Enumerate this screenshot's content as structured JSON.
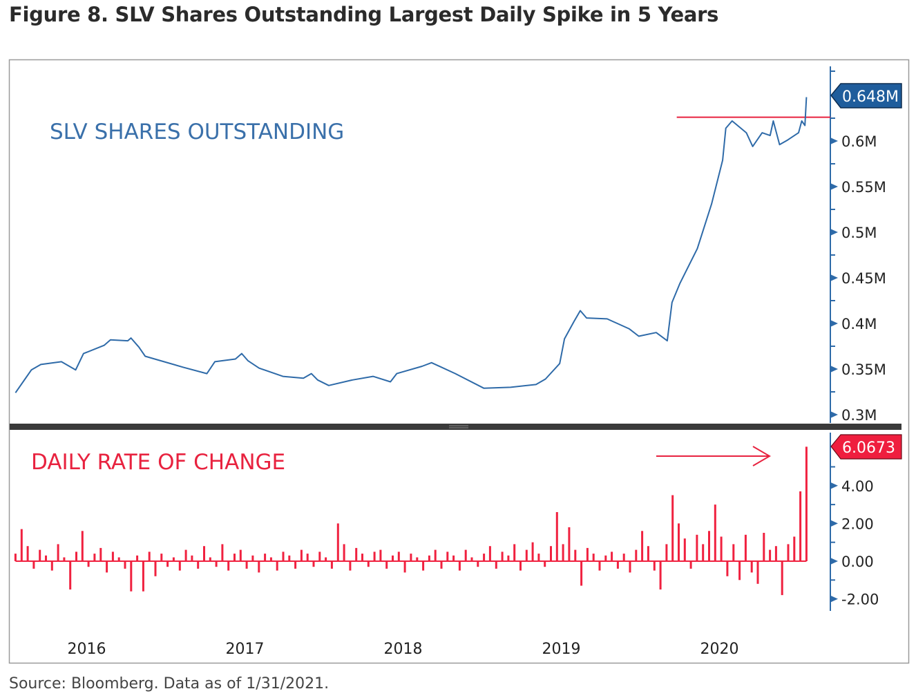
{
  "title": "Figure 8. SLV Shares Outstanding Largest Daily Spike in 5 Years",
  "source": "Source: Bloomberg. Data as of 1/31/2021.",
  "chart_data": [
    {
      "type": "line",
      "panel": "top",
      "annotation": "SLV SHARES OUTSTANDING",
      "ylabel": "",
      "ylim": [
        0.3,
        0.66
      ],
      "yticks": [
        0.3,
        0.35,
        0.4,
        0.45,
        0.5,
        0.55,
        0.6
      ],
      "ytick_labels": [
        "0.3M",
        "0.35M",
        "0.4M",
        "0.45M",
        "0.5M",
        "0.55M",
        "0.6M"
      ],
      "last_value_label": "0.648M",
      "last_value": 0.648,
      "reference_line": {
        "value": 0.626,
        "from": 2020.23
      },
      "color": "#2e6aa8",
      "x": [
        2016.05,
        2016.11,
        2016.15,
        2016.21,
        2016.34,
        2016.43,
        2016.48,
        2016.61,
        2016.65,
        2016.76,
        2016.78,
        2016.83,
        2016.87,
        2016.93,
        2017.11,
        2017.26,
        2017.31,
        2017.44,
        2017.48,
        2017.52,
        2017.59,
        2017.74,
        2017.87,
        2017.92,
        2017.96,
        2018.03,
        2018.18,
        2018.31,
        2018.42,
        2018.46,
        2018.62,
        2018.68,
        2018.83,
        2019.01,
        2019.18,
        2019.34,
        2019.4,
        2019.49,
        2019.52,
        2019.58,
        2019.62,
        2019.66,
        2019.79,
        2019.93,
        2019.99,
        2020.1,
        2020.17,
        2020.2,
        2020.25,
        2020.36,
        2020.45,
        2020.52,
        2020.54,
        2020.58,
        2020.67,
        2020.71,
        2020.77,
        2020.82,
        2020.84,
        2020.88,
        2020.93,
        2021.0,
        2021.02,
        2021.04,
        2021.05
      ],
      "y": [
        0.324,
        0.339,
        0.349,
        0.355,
        0.358,
        0.349,
        0.367,
        0.376,
        0.382,
        0.381,
        0.384,
        0.374,
        0.364,
        0.361,
        0.352,
        0.345,
        0.358,
        0.361,
        0.367,
        0.359,
        0.351,
        0.342,
        0.34,
        0.345,
        0.338,
        0.332,
        0.338,
        0.342,
        0.336,
        0.345,
        0.353,
        0.357,
        0.345,
        0.329,
        0.33,
        0.333,
        0.339,
        0.356,
        0.383,
        0.402,
        0.414,
        0.406,
        0.405,
        0.394,
        0.386,
        0.39,
        0.381,
        0.423,
        0.444,
        0.482,
        0.531,
        0.579,
        0.614,
        0.622,
        0.609,
        0.594,
        0.609,
        0.606,
        0.622,
        0.596,
        0.601,
        0.609,
        0.622,
        0.617,
        0.648
      ]
    },
    {
      "type": "bar",
      "panel": "bottom",
      "annotation": "DAILY RATE OF CHANGE",
      "ylim": [
        -2.6,
        6.3
      ],
      "yticks": [
        -2,
        0,
        2,
        4
      ],
      "ytick_labels": [
        "-2.00",
        "0.00",
        "2.00",
        "4.00"
      ],
      "last_value_label": "6.0673",
      "last_value": 6.0673,
      "color": "#f0213f",
      "x_start": 2016.05,
      "x_end": 2021.05,
      "values": [
        0.4,
        1.7,
        0.8,
        -0.4,
        0.6,
        0.3,
        -0.5,
        0.9,
        0.2,
        -1.5,
        0.5,
        1.6,
        -0.3,
        0.4,
        0.7,
        -0.6,
        0.5,
        0.2,
        -0.4,
        -1.6,
        0.3,
        -1.6,
        0.5,
        -0.8,
        0.4,
        -0.3,
        0.2,
        -0.5,
        0.6,
        0.3,
        -0.4,
        0.8,
        0.2,
        -0.3,
        0.9,
        -0.5,
        0.4,
        0.6,
        -0.4,
        0.3,
        -0.6,
        0.4,
        0.2,
        -0.5,
        0.5,
        0.3,
        -0.4,
        0.6,
        0.4,
        -0.3,
        0.5,
        0.2,
        -0.4,
        2.0,
        0.9,
        -0.5,
        0.7,
        0.4,
        -0.3,
        0.5,
        0.6,
        -0.4,
        0.3,
        0.5,
        -0.6,
        0.4,
        0.2,
        -0.5,
        0.3,
        0.6,
        -0.4,
        0.5,
        0.3,
        -0.5,
        0.6,
        0.2,
        -0.3,
        0.4,
        0.8,
        -0.4,
        0.5,
        0.3,
        0.9,
        -0.5,
        0.6,
        1.0,
        0.4,
        -0.3,
        0.8,
        2.6,
        0.9,
        1.8,
        0.6,
        -1.3,
        0.7,
        0.4,
        -0.5,
        0.3,
        0.5,
        -0.4,
        0.4,
        -0.6,
        0.6,
        1.6,
        0.8,
        -0.5,
        -1.5,
        0.9,
        3.5,
        2.0,
        1.2,
        -0.4,
        1.4,
        0.9,
        1.6,
        3.0,
        1.3,
        -0.8,
        0.9,
        -1.0,
        1.4,
        -0.6,
        -1.2,
        1.5,
        0.6,
        0.8,
        -1.8,
        0.9,
        1.3,
        3.7,
        6.0673
      ]
    }
  ],
  "x_axis": {
    "tick_labels": [
      "2016",
      "2017",
      "2018",
      "2019",
      "2020"
    ],
    "tick_positions": [
      2016.5,
      2017.5,
      2018.5,
      2019.5,
      2020.5
    ]
  }
}
